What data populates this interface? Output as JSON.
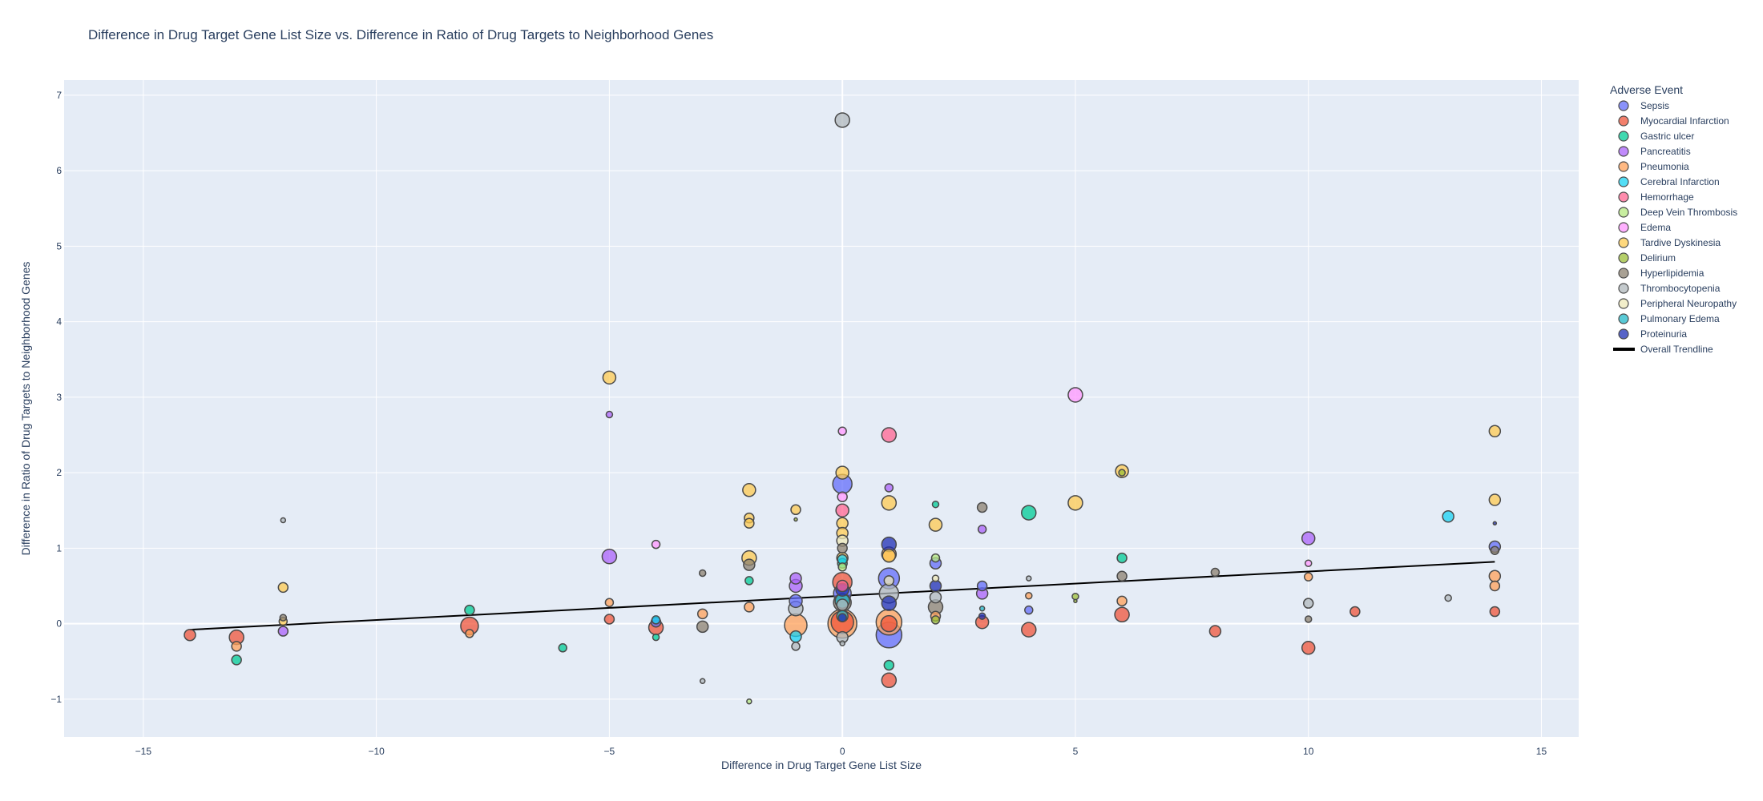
{
  "chart_data": {
    "type": "scatter",
    "title": "Difference in Drug Target Gene List Size vs. Difference in Ratio of Drug Targets to Neighborhood Genes",
    "xlabel": "Difference in Drug Target Gene List Size",
    "ylabel": "Difference in Ratio of Drug Targets to Neighborhood Genes",
    "xlim": [
      -16.7,
      15.8
    ],
    "ylim": [
      -1.5,
      7.2
    ],
    "xticks": [
      -15,
      -10,
      -5,
      0,
      5,
      10,
      15
    ],
    "yticks": [
      -1,
      0,
      1,
      2,
      3,
      4,
      5,
      6,
      7
    ],
    "xtick_labels": [
      "−15",
      "−10",
      "−5",
      "0",
      "5",
      "10",
      "15"
    ],
    "ytick_labels": [
      "−1",
      "0",
      "1",
      "2",
      "3",
      "4",
      "5",
      "6",
      "7"
    ],
    "grid": true,
    "legend_title": "Adverse Event",
    "legend_position": "right",
    "series": [
      {
        "name": "Sepsis",
        "color": "#636efa",
        "points": [
          [
            0,
            1.85,
            12
          ],
          [
            1,
            -0.15,
            16
          ],
          [
            1,
            0.6,
            13
          ],
          [
            2,
            0.8,
            7
          ],
          [
            3,
            0.5,
            6
          ],
          [
            4,
            0.18,
            5
          ],
          [
            -4,
            0.02,
            6
          ],
          [
            0,
            0.4,
            11
          ],
          [
            14,
            1.02,
            7
          ],
          [
            -1,
            0.3,
            8
          ]
        ]
      },
      {
        "name": "Myocardial Infarction",
        "color": "#ef553b",
        "points": [
          [
            -14,
            -0.15,
            7
          ],
          [
            -13,
            -0.18,
            9
          ],
          [
            -8,
            -0.03,
            11
          ],
          [
            -5,
            0.06,
            6
          ],
          [
            -4,
            -0.05,
            9
          ],
          [
            0,
            0.02,
            14
          ],
          [
            1,
            -0.75,
            9
          ],
          [
            1,
            0.0,
            10
          ],
          [
            3,
            0.02,
            8
          ],
          [
            4,
            -0.08,
            9
          ],
          [
            6,
            0.12,
            9
          ],
          [
            8,
            -0.1,
            7
          ],
          [
            10,
            -0.32,
            8
          ],
          [
            11,
            0.16,
            6
          ],
          [
            14,
            0.16,
            6
          ],
          [
            0,
            0.55,
            12
          ]
        ]
      },
      {
        "name": "Gastric ulcer",
        "color": "#00cc96",
        "points": [
          [
            -13,
            -0.48,
            6
          ],
          [
            -8,
            0.18,
            6
          ],
          [
            -6,
            -0.32,
            5
          ],
          [
            -4,
            -0.18,
            4
          ],
          [
            -2,
            0.57,
            5
          ],
          [
            1,
            -0.55,
            6
          ],
          [
            4,
            1.47,
            9
          ],
          [
            6,
            0.87,
            6
          ],
          [
            0,
            0.8,
            6
          ],
          [
            2,
            1.58,
            4
          ]
        ]
      },
      {
        "name": "Pancreatitis",
        "color": "#ab63fa",
        "points": [
          [
            -5,
            0.89,
            9
          ],
          [
            -5,
            2.77,
            4
          ],
          [
            -12,
            -0.1,
            6
          ],
          [
            -1,
            0.5,
            8
          ],
          [
            -1,
            0.6,
            7
          ],
          [
            1,
            1.8,
            5
          ],
          [
            3,
            1.25,
            5
          ],
          [
            3,
            0.4,
            7
          ],
          [
            10,
            1.13,
            8
          ]
        ]
      },
      {
        "name": "Pneumonia",
        "color": "#ffa15a",
        "points": [
          [
            -13,
            -0.3,
            6
          ],
          [
            -8,
            -0.13,
            5
          ],
          [
            -5,
            0.28,
            5
          ],
          [
            -3,
            0.13,
            6
          ],
          [
            -2,
            0.22,
            6
          ],
          [
            -1,
            -0.02,
            14
          ],
          [
            0,
            0.0,
            18
          ],
          [
            1,
            0.02,
            16
          ],
          [
            1,
            0.92,
            9
          ],
          [
            2,
            0.1,
            6
          ],
          [
            4,
            0.37,
            4
          ],
          [
            6,
            0.3,
            6
          ],
          [
            10,
            0.62,
            5
          ],
          [
            14,
            0.63,
            7
          ],
          [
            14,
            0.5,
            6
          ]
        ]
      },
      {
        "name": "Cerebral Infarction",
        "color": "#19d3f3",
        "points": [
          [
            -1,
            -0.17,
            7
          ],
          [
            0,
            0.85,
            6
          ],
          [
            13,
            1.42,
            7
          ],
          [
            -4,
            0.05,
            5
          ]
        ]
      },
      {
        "name": "Hemorrhage",
        "color": "#ff6692",
        "points": [
          [
            1,
            2.5,
            9
          ],
          [
            0,
            1.5,
            8
          ],
          [
            0,
            0.5,
            7
          ]
        ]
      },
      {
        "name": "Deep Vein Thrombosis",
        "color": "#b6e880",
        "points": [
          [
            -2,
            -1.03,
            3
          ],
          [
            2,
            0.87,
            5
          ],
          [
            0,
            0.75,
            5
          ]
        ]
      },
      {
        "name": "Edema",
        "color": "#ff97ff",
        "points": [
          [
            5,
            3.03,
            9
          ],
          [
            -4,
            1.05,
            5
          ],
          [
            0,
            1.68,
            6
          ],
          [
            0,
            2.55,
            5
          ],
          [
            10,
            0.8,
            4
          ]
        ]
      },
      {
        "name": "Tardive Dyskinesia",
        "color": "#fecb52",
        "points": [
          [
            -5,
            3.26,
            8
          ],
          [
            -2,
            1.77,
            8
          ],
          [
            -2,
            1.4,
            6
          ],
          [
            -2,
            1.33,
            6
          ],
          [
            -2,
            0.87,
            9
          ],
          [
            -1,
            1.51,
            6
          ],
          [
            0,
            2.0,
            8
          ],
          [
            0,
            1.33,
            7
          ],
          [
            0,
            1.2,
            7
          ],
          [
            0,
            0.87,
            7
          ],
          [
            1,
            1.6,
            9
          ],
          [
            1,
            0.9,
            8
          ],
          [
            2,
            1.31,
            8
          ],
          [
            5,
            1.6,
            9
          ],
          [
            6,
            2.02,
            8
          ],
          [
            14,
            2.55,
            7
          ],
          [
            14,
            1.64,
            7
          ],
          [
            -12,
            0.48,
            6
          ],
          [
            -12,
            0.03,
            5
          ]
        ]
      },
      {
        "name": "Delirium",
        "color": "#9cbf37",
        "points": [
          [
            5,
            0.36,
            4
          ],
          [
            6,
            2.0,
            4
          ],
          [
            5,
            0.3,
            2
          ],
          [
            -1,
            1.38,
            2
          ],
          [
            2,
            0.05,
            5
          ]
        ]
      },
      {
        "name": "Hyperlipidemia",
        "color": "#8c8170",
        "points": [
          [
            -3,
            -0.04,
            7
          ],
          [
            -3,
            0.67,
            4
          ],
          [
            -2,
            0.78,
            7
          ],
          [
            0,
            0.28,
            11
          ],
          [
            2,
            0.22,
            9
          ],
          [
            3,
            1.54,
            6
          ],
          [
            6,
            0.63,
            6
          ],
          [
            8,
            0.68,
            5
          ],
          [
            10,
            0.06,
            4
          ],
          [
            14,
            0.97,
            5
          ],
          [
            -12,
            0.08,
            4
          ],
          [
            0,
            1.0,
            6
          ]
        ]
      },
      {
        "name": "Thrombocytopenia",
        "color": "#b0b8bc",
        "points": [
          [
            0,
            6.67,
            9
          ],
          [
            -12,
            1.37,
            3
          ],
          [
            -1,
            -0.3,
            5
          ],
          [
            -1,
            0.2,
            9
          ],
          [
            0,
            -0.18,
            7
          ],
          [
            0,
            0.25,
            7
          ],
          [
            1,
            0.4,
            12
          ],
          [
            2,
            0.35,
            7
          ],
          [
            4,
            0.6,
            3
          ],
          [
            10,
            0.27,
            6
          ],
          [
            13,
            0.34,
            4
          ],
          [
            0,
            -0.26,
            3
          ],
          [
            -3,
            -0.76,
            3
          ]
        ]
      },
      {
        "name": "Peripheral Neuropathy",
        "color": "#eee8b8",
        "points": [
          [
            1,
            0.57,
            6
          ],
          [
            0,
            1.1,
            7
          ],
          [
            2,
            0.6,
            4
          ]
        ]
      },
      {
        "name": "Pulmonary Edema",
        "color": "#21b8c8",
        "points": [
          [
            0,
            0.3,
            9
          ],
          [
            0,
            0.1,
            7
          ],
          [
            3,
            0.2,
            3
          ]
        ]
      },
      {
        "name": "Proteinuria",
        "color": "#1f2fb4",
        "points": [
          [
            1,
            1.05,
            9
          ],
          [
            1,
            0.27,
            9
          ],
          [
            2,
            0.5,
            7
          ],
          [
            0,
            0.45,
            8
          ],
          [
            0,
            0.08,
            5
          ],
          [
            3,
            0.1,
            4
          ],
          [
            14,
            1.33,
            2
          ]
        ]
      }
    ],
    "trendline": {
      "name": "Overall Trendline",
      "color": "#000000",
      "x": [
        -14,
        14
      ],
      "y": [
        -0.08,
        0.82
      ]
    }
  }
}
